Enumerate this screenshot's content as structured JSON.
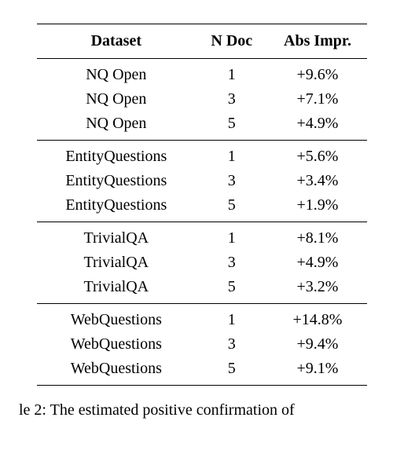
{
  "table": {
    "columns": [
      "Dataset",
      "N Doc",
      "Abs Impr."
    ],
    "groups": [
      {
        "rows": [
          {
            "dataset": "NQ Open",
            "ndoc": "1",
            "impr": "+9.6%"
          },
          {
            "dataset": "NQ Open",
            "ndoc": "3",
            "impr": "+7.1%"
          },
          {
            "dataset": "NQ Open",
            "ndoc": "5",
            "impr": "+4.9%"
          }
        ]
      },
      {
        "rows": [
          {
            "dataset": "EntityQuestions",
            "ndoc": "1",
            "impr": "+5.6%"
          },
          {
            "dataset": "EntityQuestions",
            "ndoc": "3",
            "impr": "+3.4%"
          },
          {
            "dataset": "EntityQuestions",
            "ndoc": "5",
            "impr": "+1.9%"
          }
        ]
      },
      {
        "rows": [
          {
            "dataset": "TrivialQA",
            "ndoc": "1",
            "impr": "+8.1%"
          },
          {
            "dataset": "TrivialQA",
            "ndoc": "3",
            "impr": "+4.9%"
          },
          {
            "dataset": "TrivialQA",
            "ndoc": "5",
            "impr": "+3.2%"
          }
        ]
      },
      {
        "rows": [
          {
            "dataset": "WebQuestions",
            "ndoc": "1",
            "impr": "+14.8%"
          },
          {
            "dataset": "WebQuestions",
            "ndoc": "3",
            "impr": "+9.4%"
          },
          {
            "dataset": "WebQuestions",
            "ndoc": "5",
            "impr": "+9.1%"
          }
        ]
      }
    ],
    "widths": {
      "dataset": "48%",
      "ndoc": "22%",
      "impr": "30%"
    },
    "rule_color": "#000000",
    "font_family": "Times New Roman",
    "cell_fontsize": 20,
    "header_fontsize": 20,
    "background_color": "#ffffff"
  },
  "caption_prefix": "le 2:  The estimated positive confirmation of"
}
